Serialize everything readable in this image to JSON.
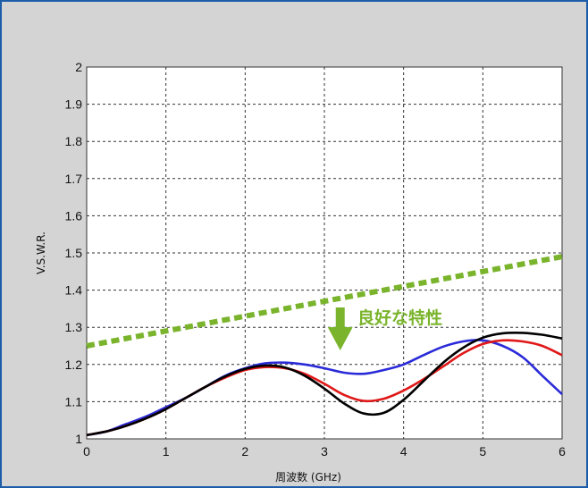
{
  "chart_data": {
    "type": "line",
    "title": "",
    "xlabel": "周波数 (GHz)",
    "ylabel": "V.S.W.R.",
    "xlim": [
      0,
      6
    ],
    "ylim": [
      1,
      2
    ],
    "xticks": [
      "0",
      "1",
      "2",
      "3",
      "4",
      "5",
      "6"
    ],
    "yticks": [
      "1",
      "1.1",
      "1.2",
      "1.3",
      "1.4",
      "1.5",
      "1.6",
      "1.7",
      "1.8",
      "1.9",
      "2"
    ],
    "grid": true,
    "series": [
      {
        "color": "#2a2ad8",
        "x": [
          0,
          0.25,
          0.5,
          0.75,
          1,
          1.25,
          1.5,
          1.75,
          2,
          2.25,
          2.5,
          2.75,
          3,
          3.25,
          3.5,
          3.75,
          4,
          4.25,
          4.5,
          4.75,
          5,
          5.25,
          5.5,
          5.75,
          6
        ],
        "values": [
          1.01,
          1.02,
          1.04,
          1.06,
          1.085,
          1.11,
          1.14,
          1.17,
          1.19,
          1.203,
          1.205,
          1.2,
          1.19,
          1.178,
          1.175,
          1.185,
          1.2,
          1.225,
          1.248,
          1.262,
          1.265,
          1.25,
          1.22,
          1.17,
          1.12
        ]
      },
      {
        "color": "#e01818",
        "x": [
          0,
          0.25,
          0.5,
          0.75,
          1,
          1.25,
          1.5,
          1.75,
          2,
          2.25,
          2.5,
          2.75,
          3,
          3.25,
          3.5,
          3.75,
          4,
          4.25,
          4.5,
          4.75,
          5,
          5.25,
          5.5,
          5.75,
          6
        ],
        "values": [
          1.01,
          1.02,
          1.035,
          1.055,
          1.08,
          1.11,
          1.14,
          1.165,
          1.185,
          1.193,
          1.19,
          1.175,
          1.148,
          1.118,
          1.102,
          1.108,
          1.13,
          1.16,
          1.195,
          1.23,
          1.255,
          1.265,
          1.262,
          1.25,
          1.225
        ]
      },
      {
        "color": "#000000",
        "x": [
          0,
          0.25,
          0.5,
          0.75,
          1,
          1.25,
          1.5,
          1.75,
          2,
          2.25,
          2.5,
          2.75,
          3,
          3.25,
          3.5,
          3.75,
          4,
          4.25,
          4.5,
          4.75,
          5,
          5.25,
          5.5,
          5.75,
          6
        ],
        "values": [
          1.01,
          1.02,
          1.035,
          1.055,
          1.08,
          1.11,
          1.14,
          1.168,
          1.188,
          1.197,
          1.192,
          1.17,
          1.135,
          1.095,
          1.068,
          1.07,
          1.105,
          1.155,
          1.205,
          1.245,
          1.272,
          1.284,
          1.285,
          1.28,
          1.27
        ]
      }
    ],
    "annotations": {
      "text": "良好な特性",
      "threshold_line": {
        "color": "#7ab42c",
        "x": [
          0,
          6
        ],
        "values": [
          1.25,
          1.49
        ]
      },
      "arrow_color": "#7ab42c",
      "arrow_x": 3.2
    }
  }
}
